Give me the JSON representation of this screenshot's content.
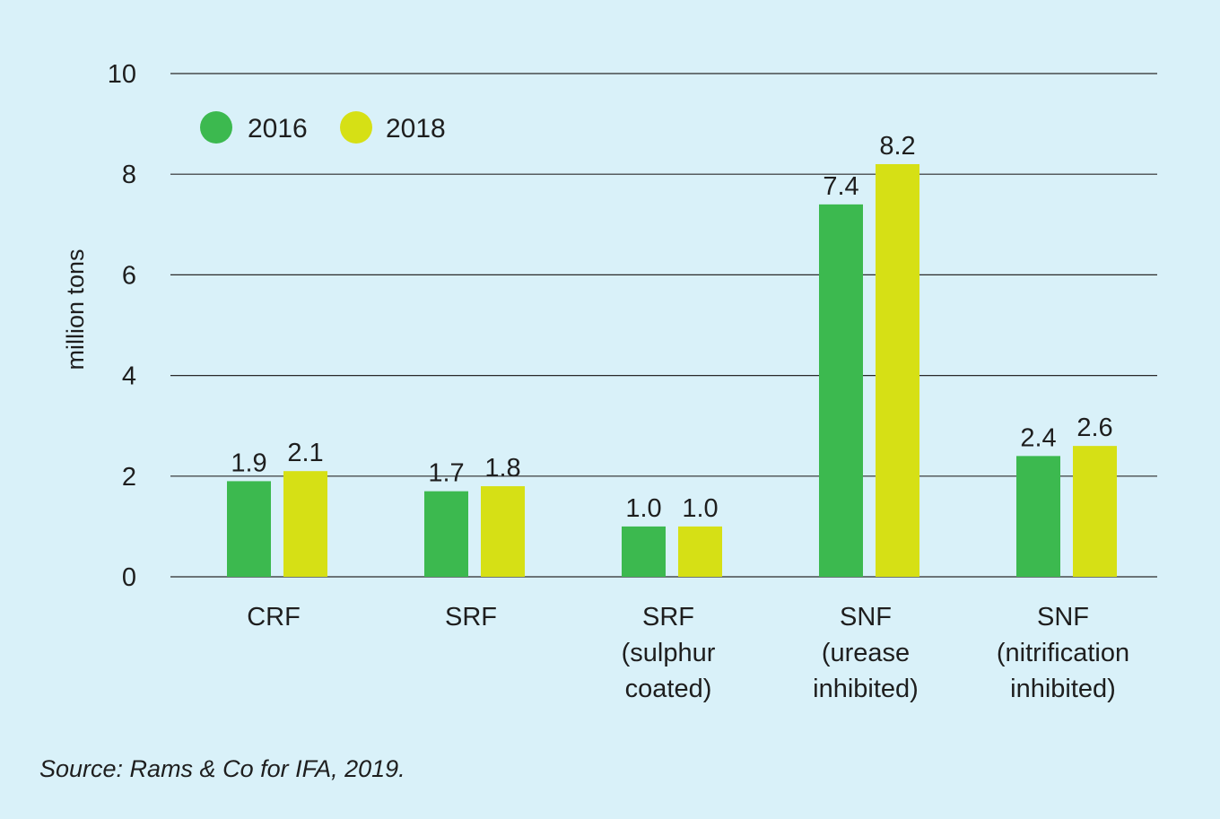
{
  "chart_data": {
    "type": "bar",
    "categories": [
      [
        "CRF"
      ],
      [
        "SRF"
      ],
      [
        "SRF",
        "(sulphur",
        "coated)"
      ],
      [
        "SNF",
        "(urease",
        "inhibited)"
      ],
      [
        "SNF",
        "(nitrification",
        "inhibited)"
      ]
    ],
    "series": [
      {
        "name": "2016",
        "color": "#3cb94f",
        "values": [
          1.9,
          1.7,
          1.0,
          7.4,
          2.4
        ],
        "labels": [
          "1.9",
          "1.7",
          "1.0",
          "7.4",
          "2.4"
        ]
      },
      {
        "name": "2018",
        "color": "#d6e015",
        "values": [
          2.1,
          1.8,
          1.0,
          8.2,
          2.6
        ],
        "labels": [
          "2.1",
          "1.8",
          "1.0",
          "8.2",
          "2.6"
        ]
      }
    ],
    "ylabel": "million tons",
    "ylim": [
      0,
      10
    ],
    "yticks": [
      0,
      2,
      4,
      6,
      8,
      10
    ],
    "grid": true,
    "legend_position": "top-left"
  },
  "source": "Source: Rams & Co for IFA, 2019."
}
